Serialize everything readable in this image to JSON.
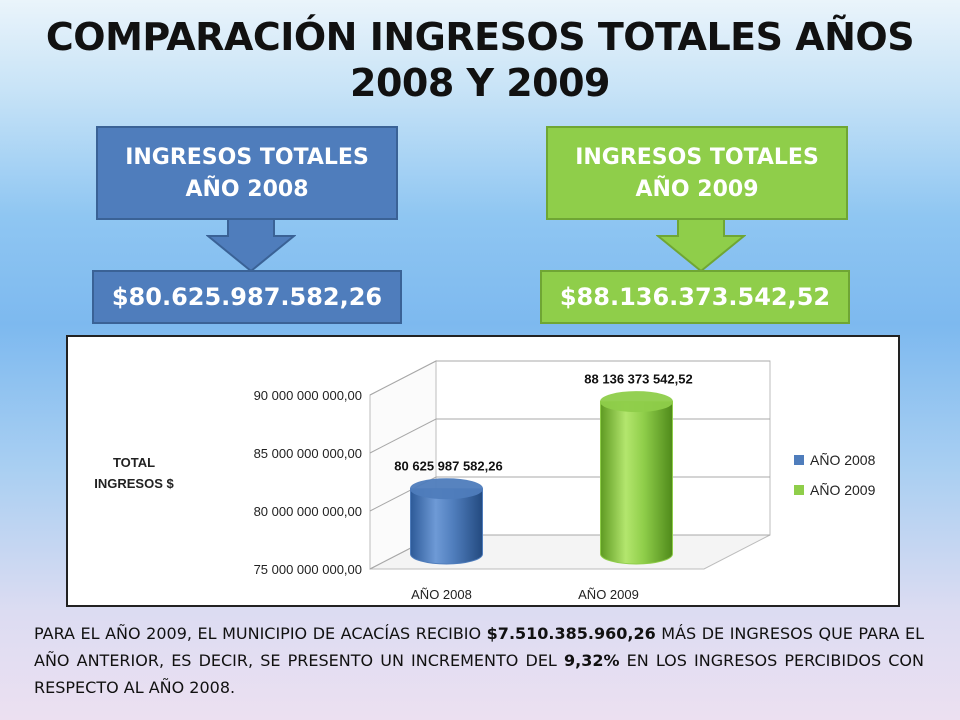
{
  "title_line1": "COMPARACIÓN INGRESOS TOTALES AÑOS",
  "title_line2": "2008 Y 2009",
  "box_2008": {
    "line1": "INGRESOS TOTALES",
    "line2": "AÑO 2008",
    "value": "$80.625.987.582,26",
    "color": "#4f7dbc"
  },
  "box_2009": {
    "line1": "INGRESOS TOTALES",
    "line2": "AÑO 2009",
    "value": "$88.136.373.542,52",
    "color": "#8fce4a"
  },
  "chart_data": {
    "type": "bar",
    "bar_style": "3d-cylinder",
    "categories": [
      "AÑO 2008",
      "AÑO 2009"
    ],
    "series": [
      {
        "name": "AÑO 2008",
        "color": "#4f7dbc",
        "values": [
          80625987582.26,
          null
        ]
      },
      {
        "name": "AÑO 2009",
        "color": "#8fce4a",
        "values": [
          null,
          88136373542.52
        ]
      }
    ],
    "data_labels": [
      "80 625 987 582,26",
      "88 136 373 542,52"
    ],
    "ylabel_line1": "TOTAL",
    "ylabel_line2": "INGRESOS $",
    "ylim": [
      75000000000,
      90000000000
    ],
    "y_ticks": [
      75000000000,
      80000000000,
      85000000000,
      90000000000
    ],
    "y_tick_labels": [
      "75 000 000 000,00",
      "80 000 000 000,00",
      "85 000 000 000,00",
      "90 000 000 000,00"
    ],
    "legend_position": "right",
    "grid": true
  },
  "footer": {
    "part1": "PARA EL AÑO 2009, EL MUNICIPIO DE ACACÍAS RECIBIO ",
    "amount": "$7.510.385.960,26",
    "part2": " MÁS DE INGRESOS QUE PARA EL AÑO ANTERIOR, ES DECIR, SE PRESENTO UN INCREMENTO DEL ",
    "percent": "9,32%",
    "part3": " EN LOS INGRESOS PERCIBIDOS CON RESPECTO AL AÑO 2008."
  }
}
